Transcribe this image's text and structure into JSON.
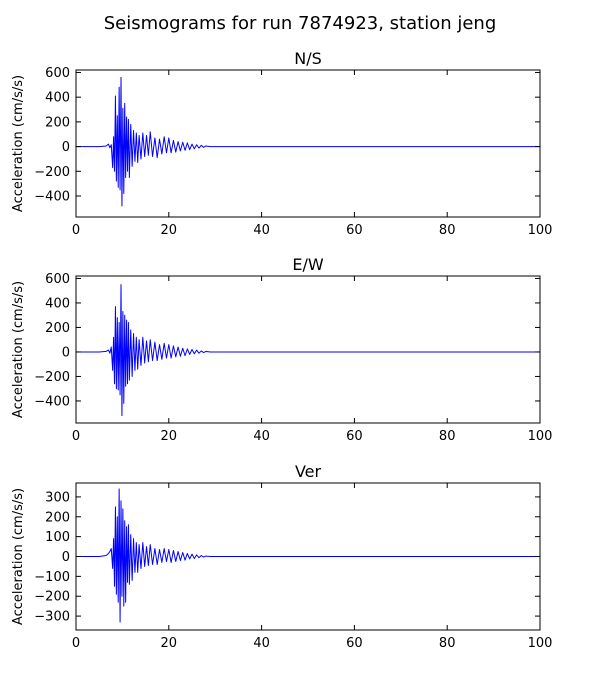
{
  "suptitle": "Seismograms for run 7874923, station jeng",
  "chart_data": [
    {
      "type": "line",
      "title": "N/S",
      "xlabel": "",
      "ylabel": "Acceleration (cm/s/s)",
      "xlim": [
        0,
        100
      ],
      "ylim": [
        -570,
        620
      ],
      "xticks": [
        0,
        20,
        40,
        60,
        80,
        100
      ],
      "yticks": [
        -400,
        -200,
        0,
        200,
        400,
        600
      ],
      "x_tick_labels": [
        "0",
        "20",
        "40",
        "60",
        "80",
        "100"
      ],
      "y_tick_labels": [
        "−400",
        "−200",
        "0",
        "200",
        "400",
        "600"
      ],
      "grid": false,
      "color": "#0000ff",
      "x": [
        0,
        5,
        6.5,
        7,
        7.3,
        7.6,
        7.9,
        8.1,
        8.3,
        8.5,
        8.7,
        8.9,
        9.1,
        9.3,
        9.5,
        9.7,
        9.9,
        10.1,
        10.3,
        10.5,
        10.7,
        10.9,
        11.1,
        11.3,
        11.5,
        11.8,
        12.1,
        12.4,
        12.7,
        13.0,
        13.3,
        13.6,
        14.0,
        14.4,
        14.8,
        15.2,
        15.6,
        16.0,
        16.5,
        17.0,
        17.5,
        18.0,
        18.5,
        19.0,
        19.5,
        20.0,
        20.5,
        21.0,
        21.5,
        22.0,
        22.5,
        23.0,
        23.5,
        24.0,
        24.5,
        25.0,
        25.5,
        26.0,
        26.5,
        27.0,
        27.5,
        28.0,
        29.0,
        100
      ],
      "y": [
        0,
        0,
        5,
        20,
        -10,
        15,
        -170,
        80,
        -200,
        410,
        -280,
        250,
        -330,
        480,
        -350,
        560,
        -480,
        310,
        -380,
        350,
        -250,
        240,
        -200,
        220,
        -250,
        180,
        -160,
        130,
        -120,
        110,
        -130,
        90,
        -100,
        110,
        -80,
        90,
        -70,
        120,
        -80,
        70,
        -90,
        60,
        -60,
        80,
        -50,
        70,
        -50,
        50,
        -45,
        40,
        -35,
        35,
        -30,
        30,
        -25,
        20,
        -18,
        15,
        -12,
        10,
        -6,
        5,
        0,
        0
      ]
    },
    {
      "type": "line",
      "title": "E/W",
      "xlabel": "",
      "ylabel": "Acceleration (cm/s/s)",
      "xlim": [
        0,
        100
      ],
      "ylim": [
        -580,
        620
      ],
      "xticks": [
        0,
        20,
        40,
        60,
        80,
        100
      ],
      "yticks": [
        -400,
        -200,
        0,
        200,
        400,
        600
      ],
      "x_tick_labels": [
        "0",
        "20",
        "40",
        "60",
        "80",
        "100"
      ],
      "y_tick_labels": [
        "−400",
        "−200",
        "0",
        "200",
        "400",
        "600"
      ],
      "grid": false,
      "color": "#0000ff",
      "x": [
        0,
        5,
        6.5,
        7,
        7.3,
        7.6,
        7.9,
        8.1,
        8.3,
        8.5,
        8.7,
        8.9,
        9.1,
        9.3,
        9.5,
        9.7,
        9.9,
        10.1,
        10.3,
        10.5,
        10.7,
        10.9,
        11.1,
        11.3,
        11.5,
        11.8,
        12.1,
        12.4,
        12.7,
        13.0,
        13.3,
        13.6,
        14.0,
        14.4,
        14.8,
        15.2,
        15.6,
        16.0,
        16.5,
        17.0,
        17.5,
        18.0,
        18.5,
        19.0,
        19.5,
        20.0,
        20.5,
        21.0,
        21.5,
        22.0,
        22.5,
        23.0,
        23.5,
        24.0,
        24.5,
        25.0,
        25.5,
        26.0,
        26.5,
        27.0,
        27.5,
        28.0,
        29.0,
        100
      ],
      "y": [
        0,
        0,
        5,
        15,
        -10,
        40,
        -150,
        120,
        -260,
        370,
        -300,
        280,
        -310,
        240,
        -350,
        550,
        -520,
        330,
        -420,
        300,
        -280,
        260,
        -260,
        240,
        -230,
        180,
        -200,
        150,
        -150,
        120,
        -140,
        100,
        -110,
        120,
        -90,
        90,
        -80,
        100,
        -70,
        80,
        -70,
        60,
        -60,
        70,
        -50,
        60,
        -50,
        50,
        -40,
        40,
        -35,
        30,
        -30,
        25,
        -20,
        20,
        -15,
        15,
        -10,
        8,
        -5,
        4,
        0,
        0
      ]
    },
    {
      "type": "line",
      "title": "Ver",
      "xlabel": "",
      "ylabel": "Acceleration (cm/s/s)",
      "xlim": [
        0,
        100
      ],
      "ylim": [
        -370,
        370
      ],
      "xticks": [
        0,
        20,
        40,
        60,
        80,
        100
      ],
      "yticks": [
        -300,
        -200,
        -100,
        0,
        100,
        200,
        300
      ],
      "x_tick_labels": [
        "0",
        "20",
        "40",
        "60",
        "80",
        "100"
      ],
      "y_tick_labels": [
        "−300",
        "−200",
        "−100",
        "0",
        "100",
        "200",
        "300"
      ],
      "grid": false,
      "color": "#0000ff",
      "x": [
        0,
        5,
        6.5,
        7,
        7.3,
        7.6,
        7.9,
        8.1,
        8.3,
        8.5,
        8.7,
        8.9,
        9.1,
        9.3,
        9.5,
        9.7,
        9.9,
        10.1,
        10.3,
        10.5,
        10.7,
        10.9,
        11.1,
        11.3,
        11.5,
        11.8,
        12.1,
        12.4,
        12.7,
        13.0,
        13.3,
        13.6,
        14.0,
        14.4,
        14.8,
        15.2,
        15.6,
        16.0,
        16.5,
        17.0,
        17.5,
        18.0,
        18.5,
        19.0,
        19.5,
        20.0,
        20.5,
        21.0,
        21.5,
        22.0,
        22.5,
        23.0,
        23.5,
        24.0,
        24.5,
        25.0,
        25.5,
        26.0,
        26.5,
        27.0,
        27.5,
        28.0,
        29.0,
        100
      ],
      "y": [
        0,
        0,
        5,
        15,
        25,
        40,
        -60,
        90,
        -150,
        250,
        -190,
        200,
        -230,
        340,
        -330,
        280,
        -200,
        240,
        -250,
        180,
        -230,
        150,
        -130,
        160,
        -140,
        110,
        -120,
        90,
        -80,
        70,
        -80,
        60,
        -60,
        70,
        -50,
        50,
        -45,
        60,
        -40,
        40,
        -40,
        35,
        -30,
        40,
        -25,
        35,
        -30,
        30,
        -25,
        25,
        -20,
        20,
        -18,
        15,
        -12,
        12,
        -10,
        8,
        -6,
        5,
        -3,
        2,
        0,
        0
      ]
    }
  ]
}
